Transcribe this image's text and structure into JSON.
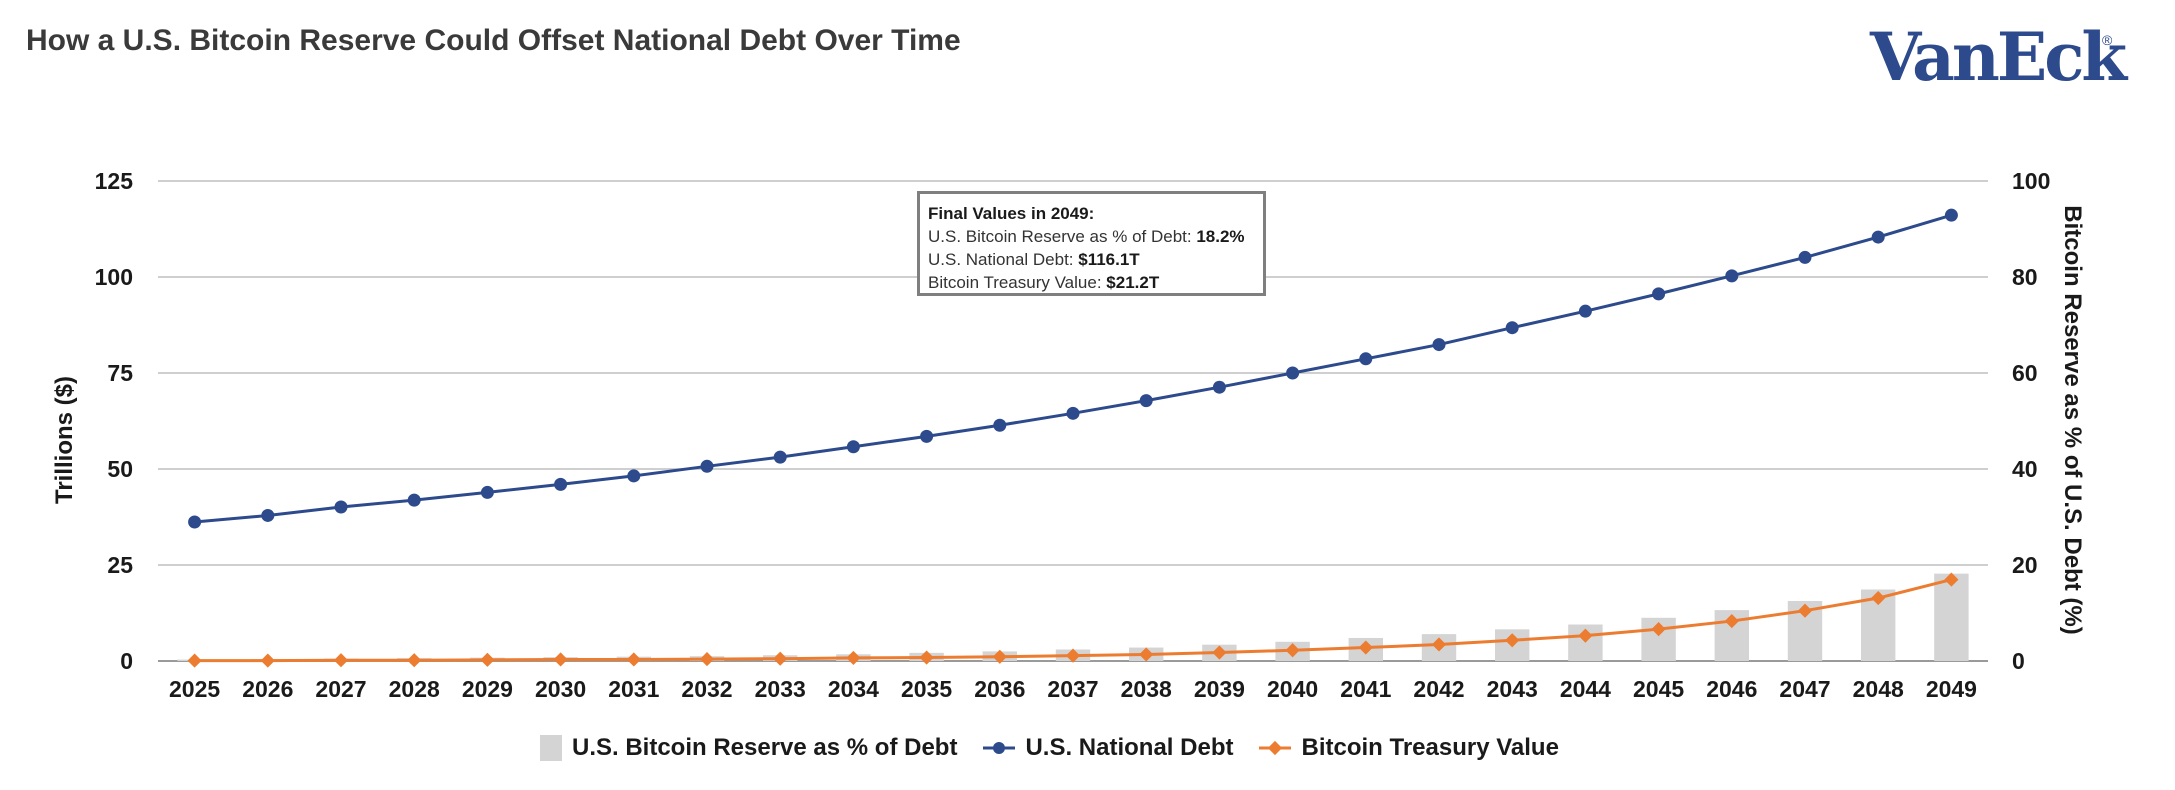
{
  "header": {
    "title": "How a U.S. Bitcoin Reserve Could Offset National Debt Over Time",
    "logo_text": "VanEck",
    "logo_mark": "®"
  },
  "annotation": {
    "heading": "Final Values in 2049:",
    "line1_label": "U.S. Bitcoin Reserve as % of Debt: ",
    "line1_value": "18.2%",
    "line2_label": "U.S. National Debt: ",
    "line2_value": "$116.1T",
    "line3_label": "Bitcoin Treasury Value: ",
    "line3_value": "$21.2T"
  },
  "legend": {
    "bar_label": "U.S. Bitcoin Reserve as % of Debt",
    "debt_label": "U.S. National Debt",
    "btc_label": "Bitcoin Treasury Value"
  },
  "colors": {
    "debt": "#2c4a8c",
    "btc": "#ec7c30",
    "bar": "#d4d4d4",
    "grid": "#bfbfbf"
  },
  "chart_data": {
    "type": "bar+line",
    "title": "How a U.S. Bitcoin Reserve Could Offset National Debt Over Time",
    "categories": [
      "2025",
      "2026",
      "2027",
      "2028",
      "2029",
      "2030",
      "2031",
      "2032",
      "2033",
      "2034",
      "2035",
      "2036",
      "2037",
      "2038",
      "2039",
      "2040",
      "2041",
      "2042",
      "2043",
      "2044",
      "2045",
      "2046",
      "2047",
      "2048",
      "2049"
    ],
    "ylabel_left": "Trillions ($)",
    "ylabel_right": "Bitcoin Reserve as % of U.S. Debt (%)",
    "ylim_left": [
      0,
      125
    ],
    "yticks_left": [
      0,
      25,
      50,
      75,
      100,
      125
    ],
    "ylim_right": [
      0,
      100
    ],
    "yticks_right": [
      0,
      20,
      40,
      60,
      80,
      100
    ],
    "grid": true,
    "legend_position": "bottom",
    "series": [
      {
        "name": "U.S. Bitcoin Reserve as % of Debt",
        "type": "bar",
        "axis": "right",
        "values": [
          0.3,
          0.4,
          0.5,
          0.6,
          0.7,
          0.8,
          0.9,
          1.0,
          1.2,
          1.4,
          1.7,
          2.0,
          2.4,
          2.8,
          3.4,
          4.0,
          4.8,
          5.6,
          6.6,
          7.6,
          9.0,
          10.6,
          12.5,
          14.9,
          18.2
        ]
      },
      {
        "name": "U.S. National Debt",
        "type": "line",
        "axis": "left",
        "values": [
          36.2,
          37.9,
          40.1,
          41.9,
          43.9,
          46.0,
          48.2,
          50.7,
          53.1,
          55.8,
          58.5,
          61.4,
          64.5,
          67.8,
          71.3,
          75.0,
          78.7,
          82.4,
          86.8,
          91.1,
          95.6,
          100.3,
          105.1,
          110.4,
          116.1
        ]
      },
      {
        "name": "Bitcoin Treasury Value",
        "type": "line",
        "axis": "left",
        "values": [
          0.1,
          0.1,
          0.2,
          0.2,
          0.3,
          0.4,
          0.4,
          0.5,
          0.6,
          0.8,
          0.9,
          1.1,
          1.4,
          1.7,
          2.2,
          2.8,
          3.5,
          4.3,
          5.4,
          6.6,
          8.3,
          10.4,
          13.1,
          16.4,
          21.2
        ]
      }
    ]
  }
}
